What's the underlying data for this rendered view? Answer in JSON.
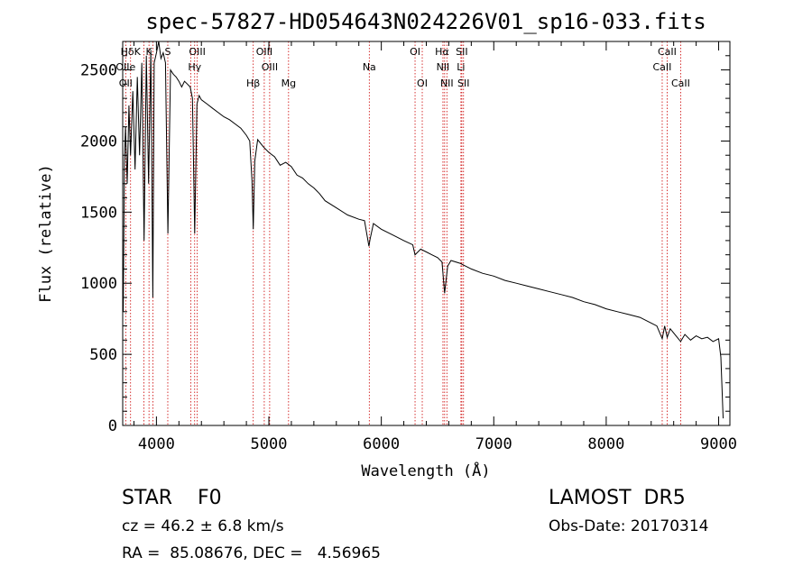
{
  "chart_data": {
    "type": "line",
    "title": "spec-57827-HD054643N024226V01_sp16-033.fits",
    "xlabel": "Wavelength (Å)",
    "ylabel": "Flux (relative)",
    "xlim": [
      3700,
      9100
    ],
    "ylim": [
      0,
      2700
    ],
    "xticks": [
      4000,
      5000,
      6000,
      7000,
      8000,
      9000
    ],
    "xtick_labels": [
      "4000",
      "5000",
      "6000",
      "7000",
      "8000",
      "9000"
    ],
    "yticks": [
      0,
      500,
      1000,
      1500,
      2000,
      2500
    ],
    "ytick_labels": [
      "0",
      "500",
      "1000",
      "1500",
      "2000",
      "2500"
    ],
    "grid": false,
    "series": [
      {
        "x": [
          3705,
          3715,
          3725,
          3740,
          3755,
          3770,
          3790,
          3810,
          3830,
          3850,
          3870,
          3890,
          3910,
          3930,
          3950,
          3968,
          3980,
          4000,
          4020,
          4040,
          4060,
          4080,
          4102,
          4125,
          4150,
          4175,
          4200,
          4225,
          4250,
          4275,
          4300,
          4320,
          4340,
          4360,
          4380,
          4400,
          4450,
          4500,
          4550,
          4600,
          4650,
          4700,
          4750,
          4800,
          4830,
          4850,
          4861,
          4875,
          4900,
          4950,
          5000,
          5050,
          5100,
          5150,
          5200,
          5250,
          5300,
          5350,
          5400,
          5450,
          5500,
          5600,
          5700,
          5800,
          5850,
          5890,
          5900,
          5930,
          6000,
          6100,
          6200,
          6280,
          6300,
          6350,
          6400,
          6450,
          6500,
          6540,
          6563,
          6590,
          6620,
          6700,
          6800,
          6900,
          7000,
          7100,
          7200,
          7300,
          7400,
          7500,
          7600,
          7700,
          7800,
          7900,
          8000,
          8100,
          8200,
          8300,
          8400,
          8450,
          8498,
          8520,
          8542,
          8570,
          8600,
          8662,
          8700,
          8750,
          8800,
          8850,
          8900,
          8950,
          9000,
          9020,
          9040
        ],
        "y": [
          800,
          1850,
          2100,
          1700,
          2250,
          1900,
          2350,
          1800,
          2450,
          1900,
          2550,
          1300,
          2600,
          1700,
          2640,
          900,
          2550,
          2620,
          2700,
          2580,
          2620,
          2550,
          1350,
          2500,
          2470,
          2450,
          2420,
          2380,
          2420,
          2400,
          2380,
          2300,
          1350,
          2260,
          2320,
          2290,
          2260,
          2230,
          2200,
          2170,
          2150,
          2120,
          2090,
          2040,
          2000,
          1720,
          1380,
          1860,
          2010,
          1960,
          1920,
          1890,
          1830,
          1850,
          1820,
          1760,
          1740,
          1700,
          1670,
          1630,
          1580,
          1530,
          1480,
          1450,
          1440,
          1260,
          1310,
          1420,
          1380,
          1340,
          1300,
          1270,
          1200,
          1240,
          1220,
          1200,
          1180,
          1150,
          930,
          1120,
          1160,
          1140,
          1100,
          1070,
          1050,
          1020,
          1000,
          980,
          960,
          940,
          920,
          900,
          870,
          850,
          820,
          800,
          780,
          760,
          720,
          700,
          610,
          700,
          620,
          680,
          650,
          590,
          640,
          600,
          630,
          610,
          620,
          590,
          610,
          480,
          50
        ]
      }
    ],
    "line_markers": [
      {
        "name": "HδK",
        "wl": 3770,
        "row": 0
      },
      {
        "name": "K",
        "wl": 3934,
        "row": 0
      },
      {
        "name": "S",
        "wl": 4101,
        "row": 0
      },
      {
        "name": "OIII",
        "wl": 4363,
        "row": 0
      },
      {
        "name": "OIII",
        "wl": 4959,
        "row": 0
      },
      {
        "name": "OI",
        "wl": 6300,
        "row": 0
      },
      {
        "name": "Hα",
        "wl": 6540,
        "row": 0
      },
      {
        "name": "SII",
        "wl": 6716,
        "row": 0
      },
      {
        "name": "CaII",
        "wl": 8542,
        "row": 0
      },
      {
        "name": "OIIe",
        "wl": 3727,
        "row": 1
      },
      {
        "name": "Hγ",
        "wl": 4340,
        "row": 1
      },
      {
        "name": "OIII",
        "wl": 5007,
        "row": 1
      },
      {
        "name": "Na",
        "wl": 5893,
        "row": 1
      },
      {
        "name": "NII",
        "wl": 6548,
        "row": 1
      },
      {
        "name": "Li",
        "wl": 6708,
        "row": 1
      },
      {
        "name": "CaII",
        "wl": 8498,
        "row": 1
      },
      {
        "name": "OII",
        "wl": 3727,
        "row": 2
      },
      {
        "name": "Hβ",
        "wl": 4861,
        "row": 2
      },
      {
        "name": "Mg",
        "wl": 5175,
        "row": 2
      },
      {
        "name": "OI",
        "wl": 6364,
        "row": 2
      },
      {
        "name": "NII",
        "wl": 6583,
        "row": 2
      },
      {
        "name": "SII",
        "wl": 6731,
        "row": 2
      },
      {
        "name": "CaII",
        "wl": 8662,
        "row": 2
      }
    ],
    "marker_lines": [
      3727,
      3770,
      3889,
      3934,
      3969,
      4101,
      4305,
      4340,
      4363,
      4861,
      4959,
      5007,
      5175,
      5893,
      6300,
      6364,
      6548,
      6563,
      6583,
      6708,
      6716,
      6731,
      8498,
      8542,
      8662
    ]
  },
  "footer": {
    "obj_type": "STAR    F0",
    "survey": "LAMOST  DR5",
    "cz": "cz = 46.2 ± 6.8 km/s",
    "obs_date": "Obs-Date: 20170314",
    "radec": "RA =  85.08676, DEC =   4.56965"
  },
  "colors": {
    "spectrum": "#000000",
    "marker": "#cc0000",
    "axes": "#000000"
  }
}
